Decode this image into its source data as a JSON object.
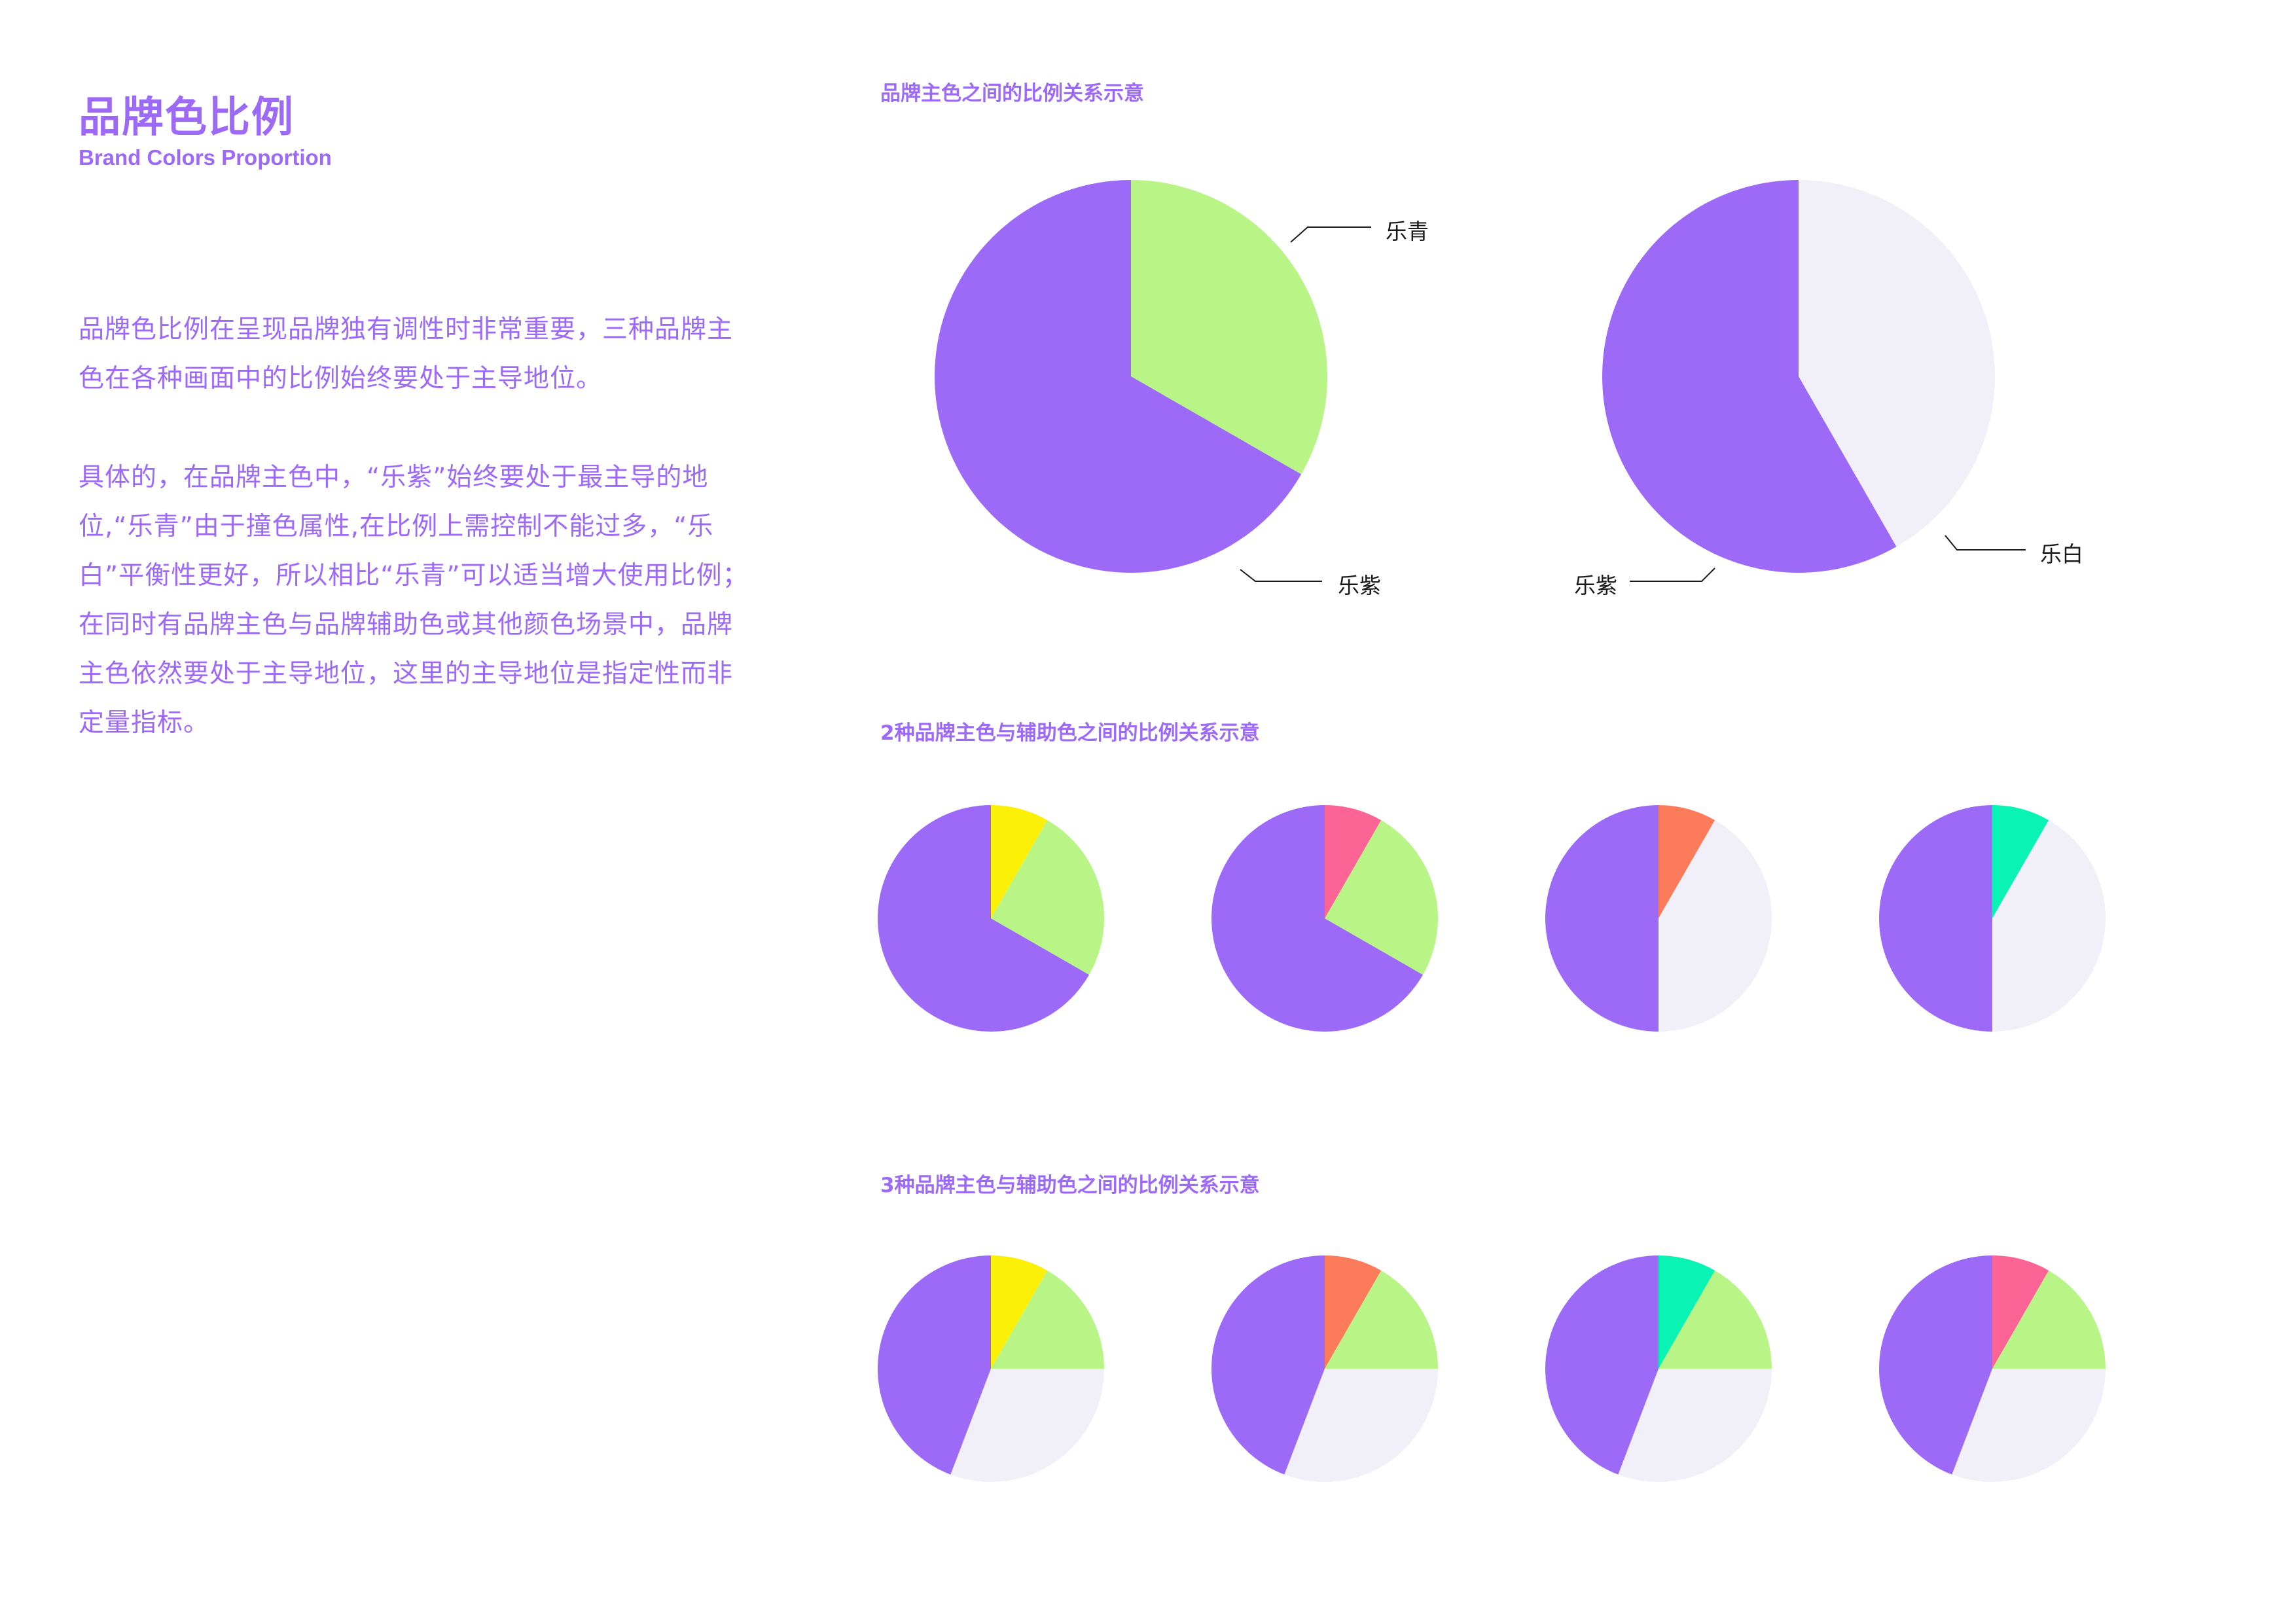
{
  "header": {
    "title": "品牌色比例",
    "subtitle": "Brand Colors Proportion"
  },
  "body": {
    "paragraph1": "品牌色比例在呈现品牌独有调性时非常重要，三种品牌主色在各种画面中的比例始终要处于主导地位。",
    "paragraph2": "具体的，在品牌主色中，“乐紫”始终要处于最主导的地位,“乐青”由于撞色属性,在比例上需控制不能过多，“乐白”平衡性更好，所以相比“乐青”可以适当增大使用比例；在同时有品牌主色与品牌辅助色或其他颜色场景中，品牌主色依然要处于主导地位，这里的主导地位是指定性而非定量指标。"
  },
  "sections": [
    {
      "label": "品牌主色之间的比例关系示意"
    },
    {
      "label": "2种品牌主色与辅助色之间的比例关系示意"
    },
    {
      "label": "3种品牌主色与辅助色之间的比例关系示意"
    }
  ],
  "colors": {
    "le_purple": "#9d6af8",
    "le_green": "#b9f586",
    "le_white": "#f1eff8",
    "yellow": "#fcf007",
    "pink": "#fc6496",
    "coral": "#fc7b5b",
    "mint": "#09f4b4"
  },
  "callouts": {
    "le_green": "乐青",
    "le_purple": "乐紫",
    "le_white": "乐白"
  },
  "chart_data": [
    {
      "type": "pie",
      "group": 1,
      "slices": [
        {
          "name": "乐青",
          "value": 0.333,
          "color": "#b9f586"
        },
        {
          "name": "乐紫",
          "value": 0.667,
          "color": "#9d6af8"
        }
      ]
    },
    {
      "type": "pie",
      "group": 1,
      "slices": [
        {
          "name": "乐白",
          "value": 0.417,
          "color": "#f1eff8"
        },
        {
          "name": "乐紫",
          "value": 0.583,
          "color": "#9d6af8"
        }
      ]
    },
    {
      "type": "pie",
      "group": 2,
      "slices": [
        {
          "value": 0.083,
          "color": "#fcf007"
        },
        {
          "value": 0.25,
          "color": "#b9f586"
        },
        {
          "value": 0.667,
          "color": "#9d6af8"
        }
      ]
    },
    {
      "type": "pie",
      "group": 2,
      "slices": [
        {
          "value": 0.083,
          "color": "#fc6496"
        },
        {
          "value": 0.25,
          "color": "#b9f586"
        },
        {
          "value": 0.667,
          "color": "#9d6af8"
        }
      ]
    },
    {
      "type": "pie",
      "group": 2,
      "slices": [
        {
          "value": 0.083,
          "color": "#fc7b5b"
        },
        {
          "value": 0.417,
          "color": "#f1eff8"
        },
        {
          "value": 0.5,
          "color": "#9d6af8"
        }
      ]
    },
    {
      "type": "pie",
      "group": 2,
      "slices": [
        {
          "value": 0.083,
          "color": "#09f4b4"
        },
        {
          "value": 0.417,
          "color": "#f1eff8"
        },
        {
          "value": 0.5,
          "color": "#9d6af8"
        }
      ]
    },
    {
      "type": "pie",
      "group": 3,
      "slices": [
        {
          "value": 0.083,
          "color": "#fcf007"
        },
        {
          "value": 0.167,
          "color": "#b9f586"
        },
        {
          "value": 0.308,
          "color": "#f1eff8"
        },
        {
          "value": 0.442,
          "color": "#9d6af8"
        }
      ]
    },
    {
      "type": "pie",
      "group": 3,
      "slices": [
        {
          "value": 0.083,
          "color": "#fc7b5b"
        },
        {
          "value": 0.167,
          "color": "#b9f586"
        },
        {
          "value": 0.308,
          "color": "#f1eff8"
        },
        {
          "value": 0.442,
          "color": "#9d6af8"
        }
      ]
    },
    {
      "type": "pie",
      "group": 3,
      "slices": [
        {
          "value": 0.083,
          "color": "#09f4b4"
        },
        {
          "value": 0.167,
          "color": "#b9f586"
        },
        {
          "value": 0.308,
          "color": "#f1eff8"
        },
        {
          "value": 0.442,
          "color": "#9d6af8"
        }
      ]
    },
    {
      "type": "pie",
      "group": 3,
      "slices": [
        {
          "value": 0.083,
          "color": "#fc6496"
        },
        {
          "value": 0.167,
          "color": "#b9f586"
        },
        {
          "value": 0.308,
          "color": "#f1eff8"
        },
        {
          "value": 0.442,
          "color": "#9d6af8"
        }
      ]
    }
  ]
}
